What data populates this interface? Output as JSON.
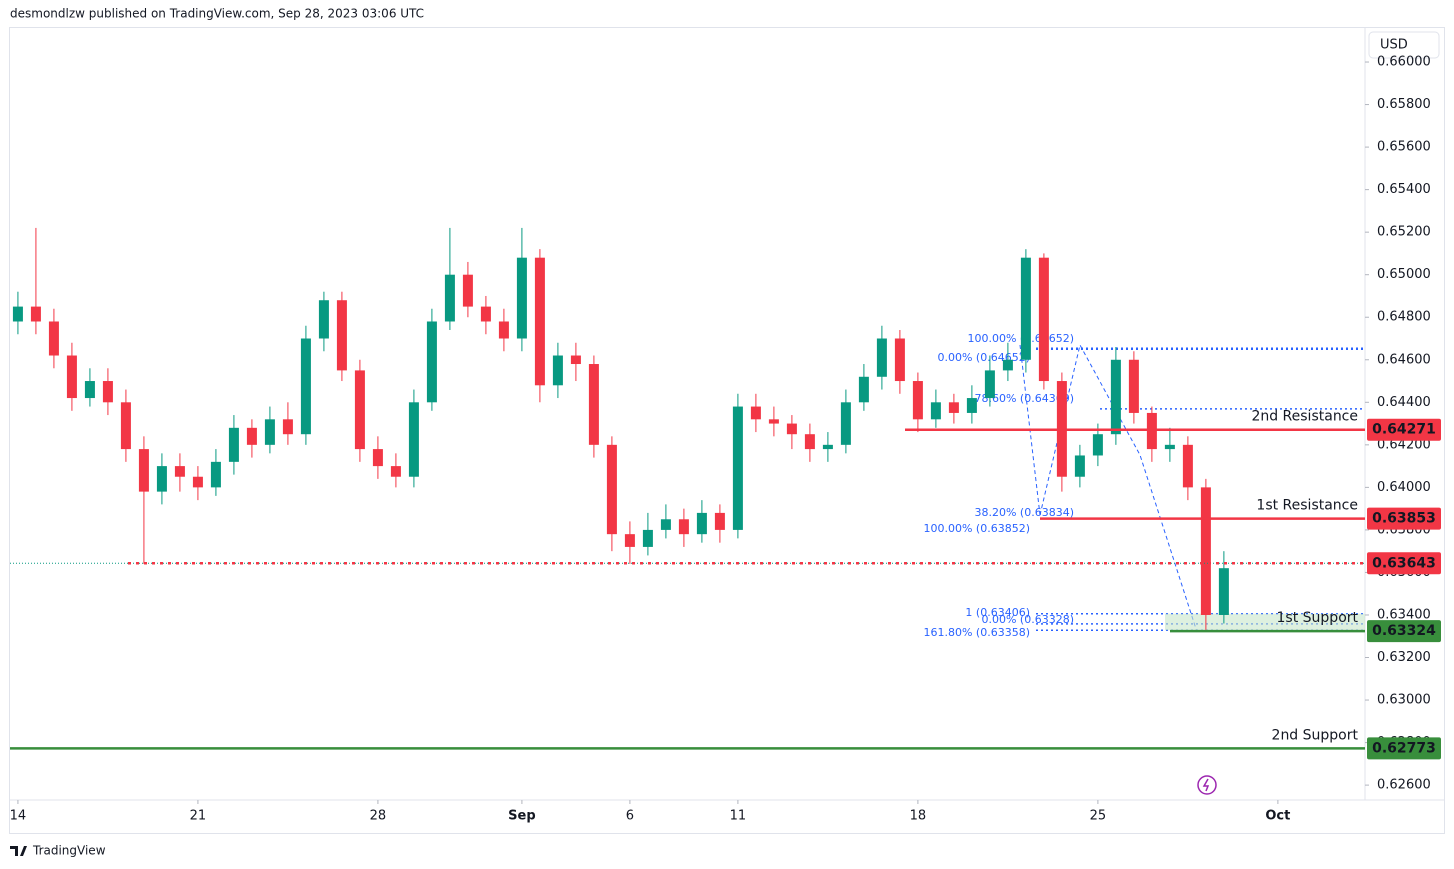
{
  "header": {
    "text": "desmondlzw published on TradingView.com, Sep 28, 2023 03:06 UTC"
  },
  "footer": {
    "brand": "TradingView"
  },
  "chart_data": {
    "type": "candlestick",
    "currency": "USD",
    "up_color": "#089981",
    "down_color": "#f23645",
    "xlim": [
      -0.22,
      37.42
    ],
    "xticks": [
      {
        "value": 0,
        "label": "14"
      },
      {
        "value": 5,
        "label": "21"
      },
      {
        "value": 10,
        "label": "28"
      },
      {
        "value": 14,
        "label": "Sep"
      },
      {
        "value": 17,
        "label": "6"
      },
      {
        "value": 20,
        "label": "11"
      },
      {
        "value": 25,
        "label": "18"
      },
      {
        "value": 30,
        "label": "25"
      },
      {
        "value": 35,
        "label": "Oct"
      }
    ],
    "ylim": [
      0.6253,
      0.6616
    ],
    "yticks": [
      {
        "value": 0.626,
        "label": "0.62600"
      },
      {
        "value": 0.628,
        "label": "0.62800"
      },
      {
        "value": 0.63,
        "label": "0.63000"
      },
      {
        "value": 0.632,
        "label": "0.63200"
      },
      {
        "value": 0.634,
        "label": "0.63400"
      },
      {
        "value": 0.636,
        "label": "0.63600"
      },
      {
        "value": 0.638,
        "label": "0.63800"
      },
      {
        "value": 0.64,
        "label": "0.64000"
      },
      {
        "value": 0.642,
        "label": "0.64200"
      },
      {
        "value": 0.644,
        "label": "0.64400"
      },
      {
        "value": 0.646,
        "label": "0.64600"
      },
      {
        "value": 0.648,
        "label": "0.64800"
      },
      {
        "value": 0.65,
        "label": "0.65000"
      },
      {
        "value": 0.652,
        "label": "0.65200"
      },
      {
        "value": 0.654,
        "label": "0.65400"
      },
      {
        "value": 0.656,
        "label": "0.65600"
      },
      {
        "value": 0.658,
        "label": "0.65800"
      },
      {
        "value": 0.66,
        "label": "0.66000"
      }
    ],
    "x": [
      0,
      0.5,
      1,
      1.5,
      2,
      2.5,
      3,
      3.5,
      4,
      4.5,
      5,
      5.5,
      6,
      6.5,
      7,
      7.5,
      8,
      8.5,
      9,
      9.5,
      10,
      10.5,
      11,
      11.5,
      12,
      12.5,
      13,
      13.5,
      14,
      14.5,
      15,
      15.5,
      16,
      16.5,
      17,
      17.5,
      18,
      18.5,
      19,
      19.5,
      20,
      20.5,
      21,
      21.5,
      22,
      22.5,
      23,
      23.5,
      24,
      24.5,
      25,
      25.5,
      26,
      26.5,
      27,
      27.5,
      28,
      28.5,
      29,
      29.5,
      30,
      30.5,
      31,
      31.5,
      32,
      32.5,
      33,
      33.5
    ],
    "open": [
      0.6478,
      0.6485,
      0.6478,
      0.6462,
      0.6442,
      0.645,
      0.644,
      0.6418,
      0.6398,
      0.641,
      0.6405,
      0.64,
      0.6412,
      0.6428,
      0.642,
      0.6432,
      0.6425,
      0.647,
      0.6488,
      0.6455,
      0.6418,
      0.641,
      0.6405,
      0.644,
      0.6478,
      0.65,
      0.6485,
      0.6478,
      0.647,
      0.6508,
      0.6448,
      0.6462,
      0.6458,
      0.642,
      0.6378,
      0.6372,
      0.638,
      0.6385,
      0.6378,
      0.6388,
      0.638,
      0.6438,
      0.6432,
      0.643,
      0.6425,
      0.6418,
      0.642,
      0.644,
      0.6452,
      0.647,
      0.645,
      0.6432,
      0.644,
      0.6435,
      0.6442,
      0.6455,
      0.646,
      0.6508,
      0.645,
      0.6405,
      0.6415,
      0.6425,
      0.646,
      0.6435,
      0.6418,
      0.642,
      0.64,
      0.634
    ],
    "high": [
      0.6492,
      0.6522,
      0.6484,
      0.6468,
      0.6456,
      0.6456,
      0.6446,
      0.6424,
      0.6416,
      0.6416,
      0.641,
      0.6418,
      0.6434,
      0.6432,
      0.6438,
      0.644,
      0.6476,
      0.6492,
      0.6492,
      0.646,
      0.6424,
      0.6416,
      0.6446,
      0.6484,
      0.6522,
      0.6506,
      0.649,
      0.6484,
      0.6522,
      0.6512,
      0.6468,
      0.6468,
      0.6462,
      0.6424,
      0.6384,
      0.6388,
      0.6392,
      0.639,
      0.6394,
      0.6392,
      0.6444,
      0.6444,
      0.6438,
      0.6434,
      0.643,
      0.6426,
      0.6446,
      0.6458,
      0.6476,
      0.6474,
      0.6454,
      0.6446,
      0.6444,
      0.6448,
      0.6462,
      0.6468,
      0.6512,
      0.651,
      0.6454,
      0.642,
      0.643,
      0.6466,
      0.6464,
      0.6438,
      0.6428,
      0.6424,
      0.6404,
      0.637
    ],
    "low": [
      0.6472,
      0.6472,
      0.6456,
      0.6436,
      0.6438,
      0.6434,
      0.6412,
      0.6364,
      0.6392,
      0.6398,
      0.6394,
      0.6396,
      0.6406,
      0.6414,
      0.6416,
      0.642,
      0.642,
      0.6464,
      0.645,
      0.6412,
      0.6404,
      0.64,
      0.64,
      0.6436,
      0.6474,
      0.648,
      0.6472,
      0.6464,
      0.6464,
      0.644,
      0.6442,
      0.645,
      0.6414,
      0.637,
      0.6364,
      0.6368,
      0.6376,
      0.6372,
      0.6374,
      0.6374,
      0.6376,
      0.6426,
      0.6424,
      0.6418,
      0.6412,
      0.6412,
      0.6416,
      0.6436,
      0.6446,
      0.6444,
      0.6426,
      0.6428,
      0.643,
      0.643,
      0.6438,
      0.645,
      0.6454,
      0.6446,
      0.6398,
      0.64,
      0.641,
      0.642,
      0.643,
      0.6412,
      0.6412,
      0.6394,
      0.6333,
      0.6336
    ],
    "close": [
      0.6485,
      0.6478,
      0.6462,
      0.6442,
      0.645,
      0.644,
      0.6418,
      0.6398,
      0.641,
      0.6405,
      0.64,
      0.6412,
      0.6428,
      0.642,
      0.6432,
      0.6425,
      0.647,
      0.6488,
      0.6455,
      0.6418,
      0.641,
      0.6405,
      0.644,
      0.6478,
      0.65,
      0.6485,
      0.6478,
      0.647,
      0.6508,
      0.6448,
      0.6462,
      0.6458,
      0.642,
      0.6378,
      0.6372,
      0.638,
      0.6385,
      0.6378,
      0.6388,
      0.638,
      0.6438,
      0.6432,
      0.643,
      0.6425,
      0.6418,
      0.642,
      0.644,
      0.6452,
      0.647,
      0.645,
      0.6432,
      0.644,
      0.6435,
      0.6442,
      0.6455,
      0.646,
      0.6508,
      0.645,
      0.6405,
      0.6415,
      0.6425,
      0.646,
      0.6435,
      0.6418,
      0.642,
      0.64,
      0.634,
      0.6362
    ],
    "levels": [
      {
        "label": "2nd Resistance",
        "value": 0.64271,
        "color": "#f23645"
      },
      {
        "label": "1st Resistance",
        "value": 0.63853,
        "color": "#f23645"
      },
      {
        "label": "1st Support",
        "value": 0.63324,
        "color": "#388e3c"
      },
      {
        "label": "2nd Support",
        "value": 0.62773,
        "color": "#388e3c"
      }
    ],
    "current_price": {
      "value": 0.63643,
      "color": "#f23645"
    },
    "fib_color": "#2962ff",
    "fib_lines": [
      0.64652,
      0.64369,
      0.63406,
      0.63358,
      0.63328
    ],
    "fib_labels": [
      "100.00% (0.64652)",
      "0.00% (0.64652)",
      "78.60% (0.64369)",
      "38.20% (0.63834)",
      "100.00% (0.63852)",
      "1 (0.63406)",
      "0.00% (0.63328)",
      "161.80% (0.63358)"
    ]
  }
}
